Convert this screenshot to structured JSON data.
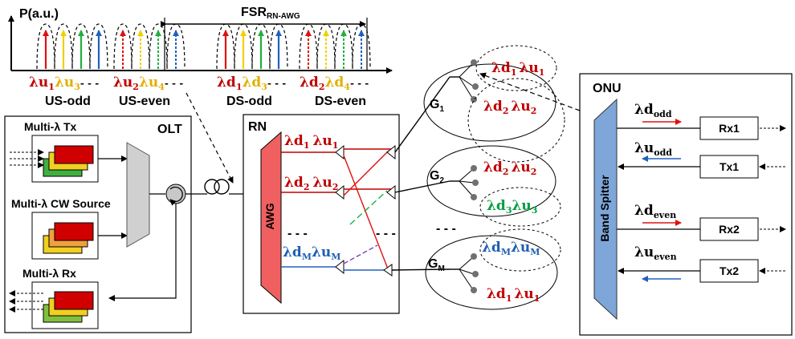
{
  "spectrum": {
    "ylabel": "P(a.u.)",
    "fsr_main": "FSR",
    "fsr_sub": "RN-AWG",
    "groups": [
      {
        "label": "US-odd",
        "l1": "λu",
        "s1": "1",
        "l2": "λu",
        "s2": "3",
        "dots": "- - -"
      },
      {
        "label": "US-even",
        "l1": "λu",
        "s1": "2",
        "l2": "λu",
        "s2": "4",
        "dots": "- - -"
      },
      {
        "label": "DS-odd",
        "l1": "λd",
        "s1": "1",
        "l2": "λd",
        "s2": "3",
        "dots": "- - -"
      },
      {
        "label": "DS-even",
        "l1": "λd",
        "s1": "2",
        "l2": "λd",
        "s2": "4",
        "dots": "- - -"
      }
    ]
  },
  "olt": {
    "title": "OLT",
    "tx": "Multi-λ Tx",
    "cw": "Multi-λ CW Source",
    "rx": "Multi-λ Rx"
  },
  "rn": {
    "title": "RN",
    "awg": "AWG",
    "ports": [
      {
        "d": "λd",
        "dsub": "1",
        "u": "λu",
        "usub": "1"
      },
      {
        "d": "λd",
        "dsub": "2",
        "u": "λu",
        "usub": "2"
      },
      {
        "d": "λd",
        "dsub": "M",
        "u": "λu",
        "usub": "M"
      }
    ],
    "dots": "- - -",
    "dots2": "- - -"
  },
  "groups": [
    {
      "name": "G",
      "sub": "1",
      "a_d": "λd",
      "a_dsub": "1",
      "a_u": "λu",
      "a_usub": "1",
      "b_d": "λd",
      "b_dsub": "2",
      "b_u": "λu",
      "b_usub": "2"
    },
    {
      "name": "G",
      "sub": "2",
      "a_d": "λd",
      "a_dsub": "2",
      "a_u": "λu",
      "a_usub": "2",
      "b_d": "λd",
      "b_dsub": "3",
      "b_u": "λu",
      "b_usub": "3"
    },
    {
      "name": "G",
      "sub": "M",
      "a_d": "λd",
      "a_dsub": "M",
      "a_u": "λu",
      "a_usub": "M",
      "b_d": "λd",
      "b_dsub": "1",
      "b_u": "λu",
      "b_usub": "1"
    }
  ],
  "groups_dots": "- - -",
  "onu": {
    "title": "ONU",
    "splitter": "Band Spitter",
    "rows": [
      {
        "lam": "λd",
        "sub": "odd",
        "box": "Rx1"
      },
      {
        "lam": "λu",
        "sub": "odd",
        "box": "Tx1"
      },
      {
        "lam": "λd",
        "sub": "even",
        "box": "Rx2"
      },
      {
        "lam": "λu",
        "sub": "even",
        "box": "Tx2"
      }
    ]
  },
  "colors": {
    "red": "#e01010",
    "yellow": "#f0d000",
    "green": "#20b040",
    "blue": "#2060c0",
    "awg": "#f06060",
    "splitter": "#7ea6d8"
  }
}
